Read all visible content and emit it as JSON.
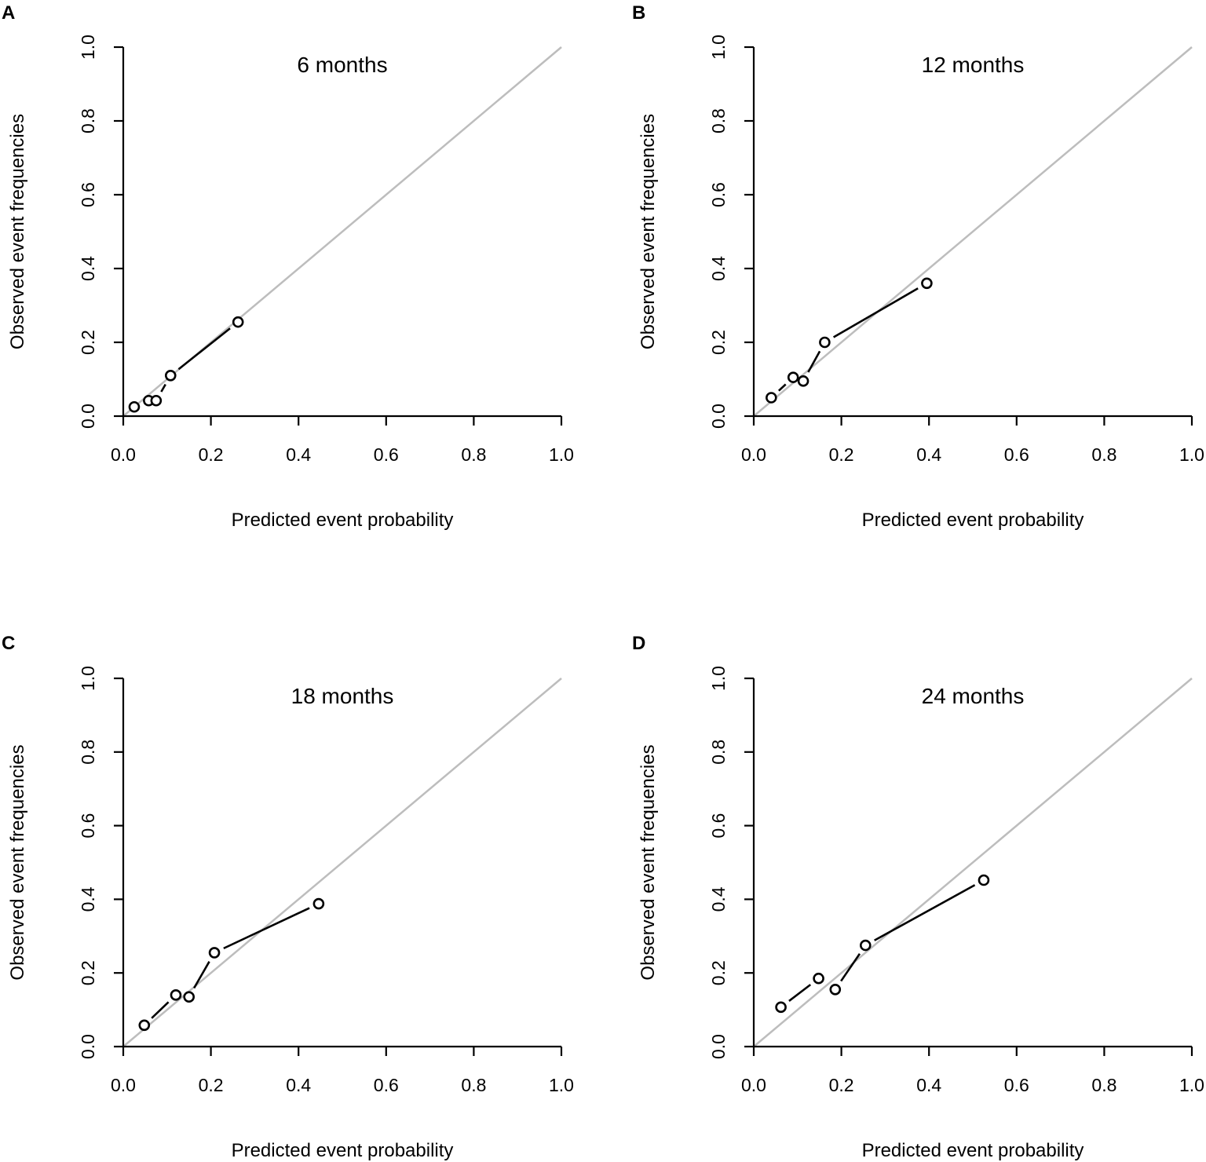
{
  "chart_data": [
    {
      "panel_label": "A",
      "type": "line",
      "title": "6 months",
      "xlabel": "Predicted event probability",
      "ylabel": "Observed event frequencies",
      "xlim": [
        0,
        1
      ],
      "ylim": [
        0,
        1
      ],
      "xticks": [
        "0.0",
        "0.2",
        "0.4",
        "0.6",
        "0.8",
        "1.0"
      ],
      "yticks": [
        "0.0",
        "0.2",
        "0.4",
        "0.6",
        "0.8",
        "1.0"
      ],
      "reference_line": "y = x",
      "x": [
        0.025,
        0.058,
        0.075,
        0.108,
        0.262
      ],
      "y": [
        0.025,
        0.042,
        0.042,
        0.11,
        0.255
      ]
    },
    {
      "panel_label": "B",
      "type": "line",
      "title": "12 months",
      "xlabel": "Predicted event probability",
      "ylabel": "Observed event frequencies",
      "xlim": [
        0,
        1
      ],
      "ylim": [
        0,
        1
      ],
      "xticks": [
        "0.0",
        "0.2",
        "0.4",
        "0.6",
        "0.8",
        "1.0"
      ],
      "yticks": [
        "0.0",
        "0.2",
        "0.4",
        "0.6",
        "0.8",
        "1.0"
      ],
      "reference_line": "y = x",
      "x": [
        0.04,
        0.09,
        0.113,
        0.162,
        0.395
      ],
      "y": [
        0.05,
        0.105,
        0.095,
        0.2,
        0.36
      ]
    },
    {
      "panel_label": "C",
      "type": "line",
      "title": "18 months",
      "xlabel": "Predicted event probability",
      "ylabel": "Observed event frequencies",
      "xlim": [
        0,
        1
      ],
      "ylim": [
        0,
        1
      ],
      "xticks": [
        "0.0",
        "0.2",
        "0.4",
        "0.6",
        "0.8",
        "1.0"
      ],
      "yticks": [
        "0.0",
        "0.2",
        "0.4",
        "0.6",
        "0.8",
        "1.0"
      ],
      "reference_line": "y = x",
      "x": [
        0.048,
        0.12,
        0.15,
        0.208,
        0.446
      ],
      "y": [
        0.058,
        0.14,
        0.135,
        0.255,
        0.388
      ]
    },
    {
      "panel_label": "D",
      "type": "line",
      "title": "24 months",
      "xlabel": "Predicted event probability",
      "ylabel": "Observed event frequencies",
      "xlim": [
        0,
        1
      ],
      "ylim": [
        0,
        1
      ],
      "xticks": [
        "0.0",
        "0.2",
        "0.4",
        "0.6",
        "0.8",
        "1.0"
      ],
      "yticks": [
        "0.0",
        "0.2",
        "0.4",
        "0.6",
        "0.8",
        "1.0"
      ],
      "reference_line": "y = x",
      "x": [
        0.062,
        0.148,
        0.186,
        0.255,
        0.525
      ],
      "y": [
        0.107,
        0.185,
        0.155,
        0.275,
        0.452
      ]
    }
  ]
}
